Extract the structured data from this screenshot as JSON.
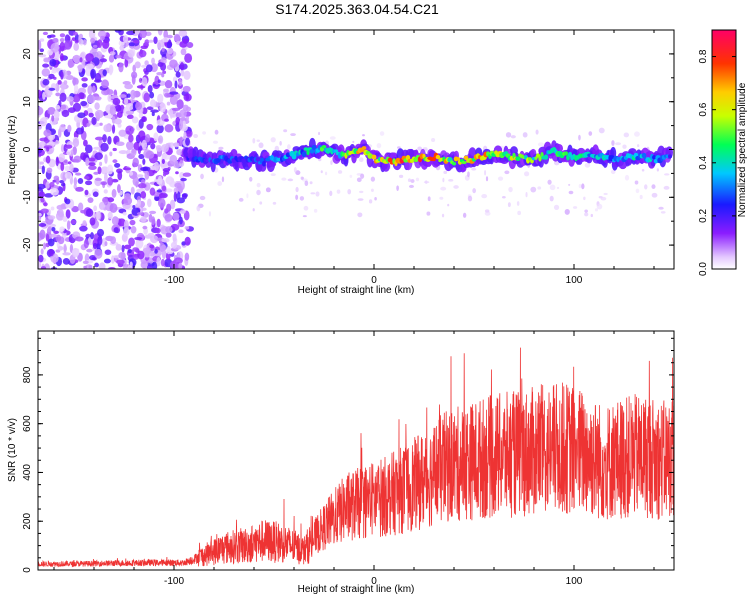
{
  "title": "S174.2025.363.04.54.C21",
  "chart_data": [
    {
      "type": "heatmap",
      "xlabel": "Height of straight line (km)",
      "ylabel": "Frequency (Hz)",
      "xlim": [
        -168,
        150
      ],
      "ylim": [
        -25,
        25
      ],
      "xticks": [
        -100,
        0,
        100
      ],
      "yticks": [
        -20,
        -10,
        0,
        10,
        20
      ],
      "signal_track": {
        "x": [
          -94,
          -85,
          -75,
          -65,
          -55,
          -45,
          -35,
          -25,
          -15,
          -5,
          0,
          10,
          20,
          30,
          40,
          50,
          60,
          70,
          80,
          90,
          100,
          110,
          120,
          130,
          140,
          148
        ],
        "frequency": [
          -1.5,
          -2.5,
          -2,
          -2,
          -2.5,
          -1.5,
          -0.5,
          0.5,
          -1.5,
          0,
          -2,
          -2.5,
          -2,
          -1.5,
          -2.5,
          -2,
          -1,
          -1.5,
          -2,
          -0.5,
          -1.5,
          -1,
          -2,
          -1.5,
          -2,
          -1.5
        ],
        "amplitude": [
          0.25,
          0.3,
          0.35,
          0.3,
          0.35,
          0.4,
          0.45,
          0.55,
          0.6,
          0.8,
          0.7,
          0.85,
          0.9,
          0.8,
          0.7,
          0.75,
          0.8,
          0.7,
          0.6,
          0.55,
          0.5,
          0.45,
          0.4,
          0.45,
          0.4,
          0.35
        ]
      },
      "colorbar": {
        "label": "Normalized spectral amplitude",
        "range": [
          0,
          0.9
        ],
        "ticks": [
          "0.0",
          "0.2",
          "0.4",
          "0.6",
          "0.8"
        ]
      }
    },
    {
      "type": "line",
      "xlabel": "Height of straight line (km)",
      "ylabel": "SNR (10 * v/v)",
      "xlim": [
        -168,
        150
      ],
      "ylim": [
        0,
        980
      ],
      "xticks": [
        -100,
        0,
        100
      ],
      "yticks": [
        0,
        200,
        400,
        600,
        800
      ],
      "color": "#ee3333",
      "series": [
        {
          "name": "SNR",
          "x": [
            -168,
            -150,
            -130,
            -110,
            -95,
            -85,
            -75,
            -65,
            -55,
            -45,
            -35,
            -28,
            -22,
            -15,
            -5,
            5,
            15,
            25,
            35,
            45,
            55,
            65,
            75,
            85,
            95,
            105,
            115,
            125,
            135,
            145,
            150
          ],
          "y": [
            25,
            25,
            28,
            30,
            30,
            60,
            90,
            100,
            120,
            110,
            80,
            150,
            200,
            250,
            280,
            300,
            330,
            370,
            420,
            440,
            460,
            470,
            480,
            490,
            500,
            480,
            440,
            460,
            470,
            450,
            470
          ]
        }
      ]
    }
  ]
}
